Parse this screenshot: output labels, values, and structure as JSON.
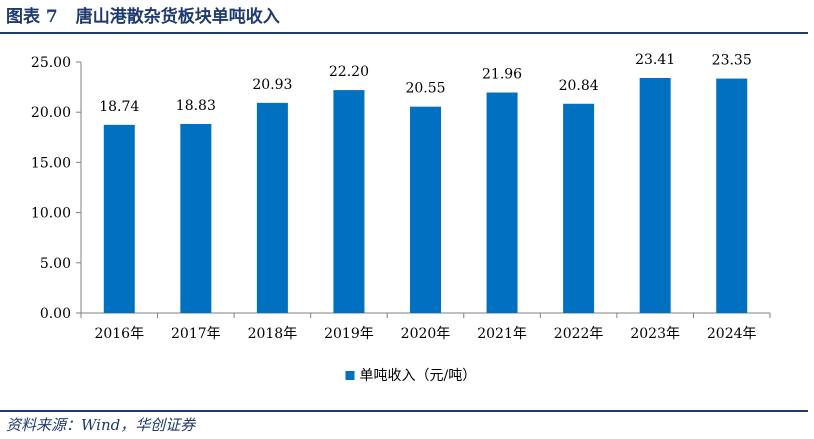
{
  "header": {
    "figure_number": "图表 7",
    "title": "唐山港散杂货板块单吨收入"
  },
  "footer": {
    "source": "资料来源：Wind，华创证券"
  },
  "colors": {
    "bar": "#0070c0",
    "rule": "#1f3a6e",
    "axis": "#808080"
  },
  "chart_data": {
    "type": "bar",
    "categories": [
      "2016年",
      "2017年",
      "2018年",
      "2019年",
      "2020年",
      "2021年",
      "2022年",
      "2023年",
      "2024年"
    ],
    "series": [
      {
        "name": "单吨收入（元/吨）",
        "values": [
          18.74,
          18.83,
          20.93,
          22.2,
          20.55,
          21.96,
          20.84,
          23.41,
          23.35
        ],
        "labels": [
          "18.74",
          "18.83",
          "20.93",
          "22.20",
          "20.55",
          "21.96",
          "20.84",
          "23.41",
          "23.35"
        ]
      }
    ],
    "y_ticks": [
      "0.00",
      "5.00",
      "10.00",
      "15.00",
      "20.00",
      "25.00"
    ],
    "ylim": [
      0,
      25
    ],
    "grid": false,
    "legend_position": "bottom-center"
  }
}
